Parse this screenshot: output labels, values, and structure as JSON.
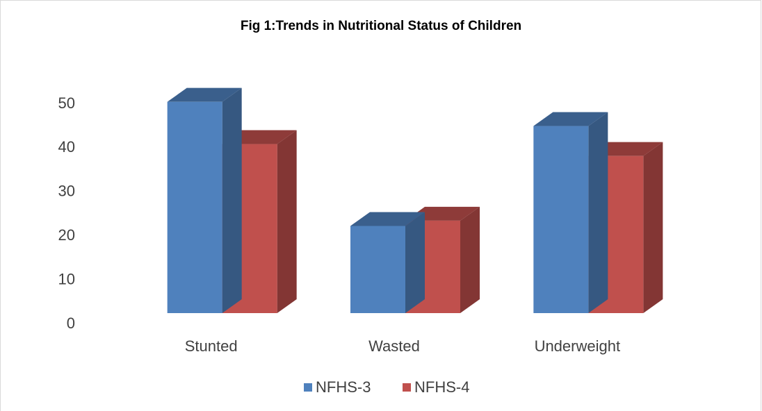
{
  "chart_data": {
    "type": "bar3d",
    "title": "Fig 1:Trends in Nutritional Status of Children",
    "categories": [
      "Stunted",
      "Wasted",
      "Underweight"
    ],
    "series": [
      {
        "name": "NFHS-3",
        "color": "#4f81bd",
        "values": [
          48,
          19.8,
          42.5
        ]
      },
      {
        "name": "NFHS-4",
        "color": "#c0504d",
        "values": [
          38.4,
          21,
          35.7
        ]
      }
    ],
    "ylim": [
      0,
      50
    ],
    "yticks": [
      0,
      10,
      20,
      30,
      40,
      50
    ],
    "grid": false,
    "legend": "bottom"
  }
}
